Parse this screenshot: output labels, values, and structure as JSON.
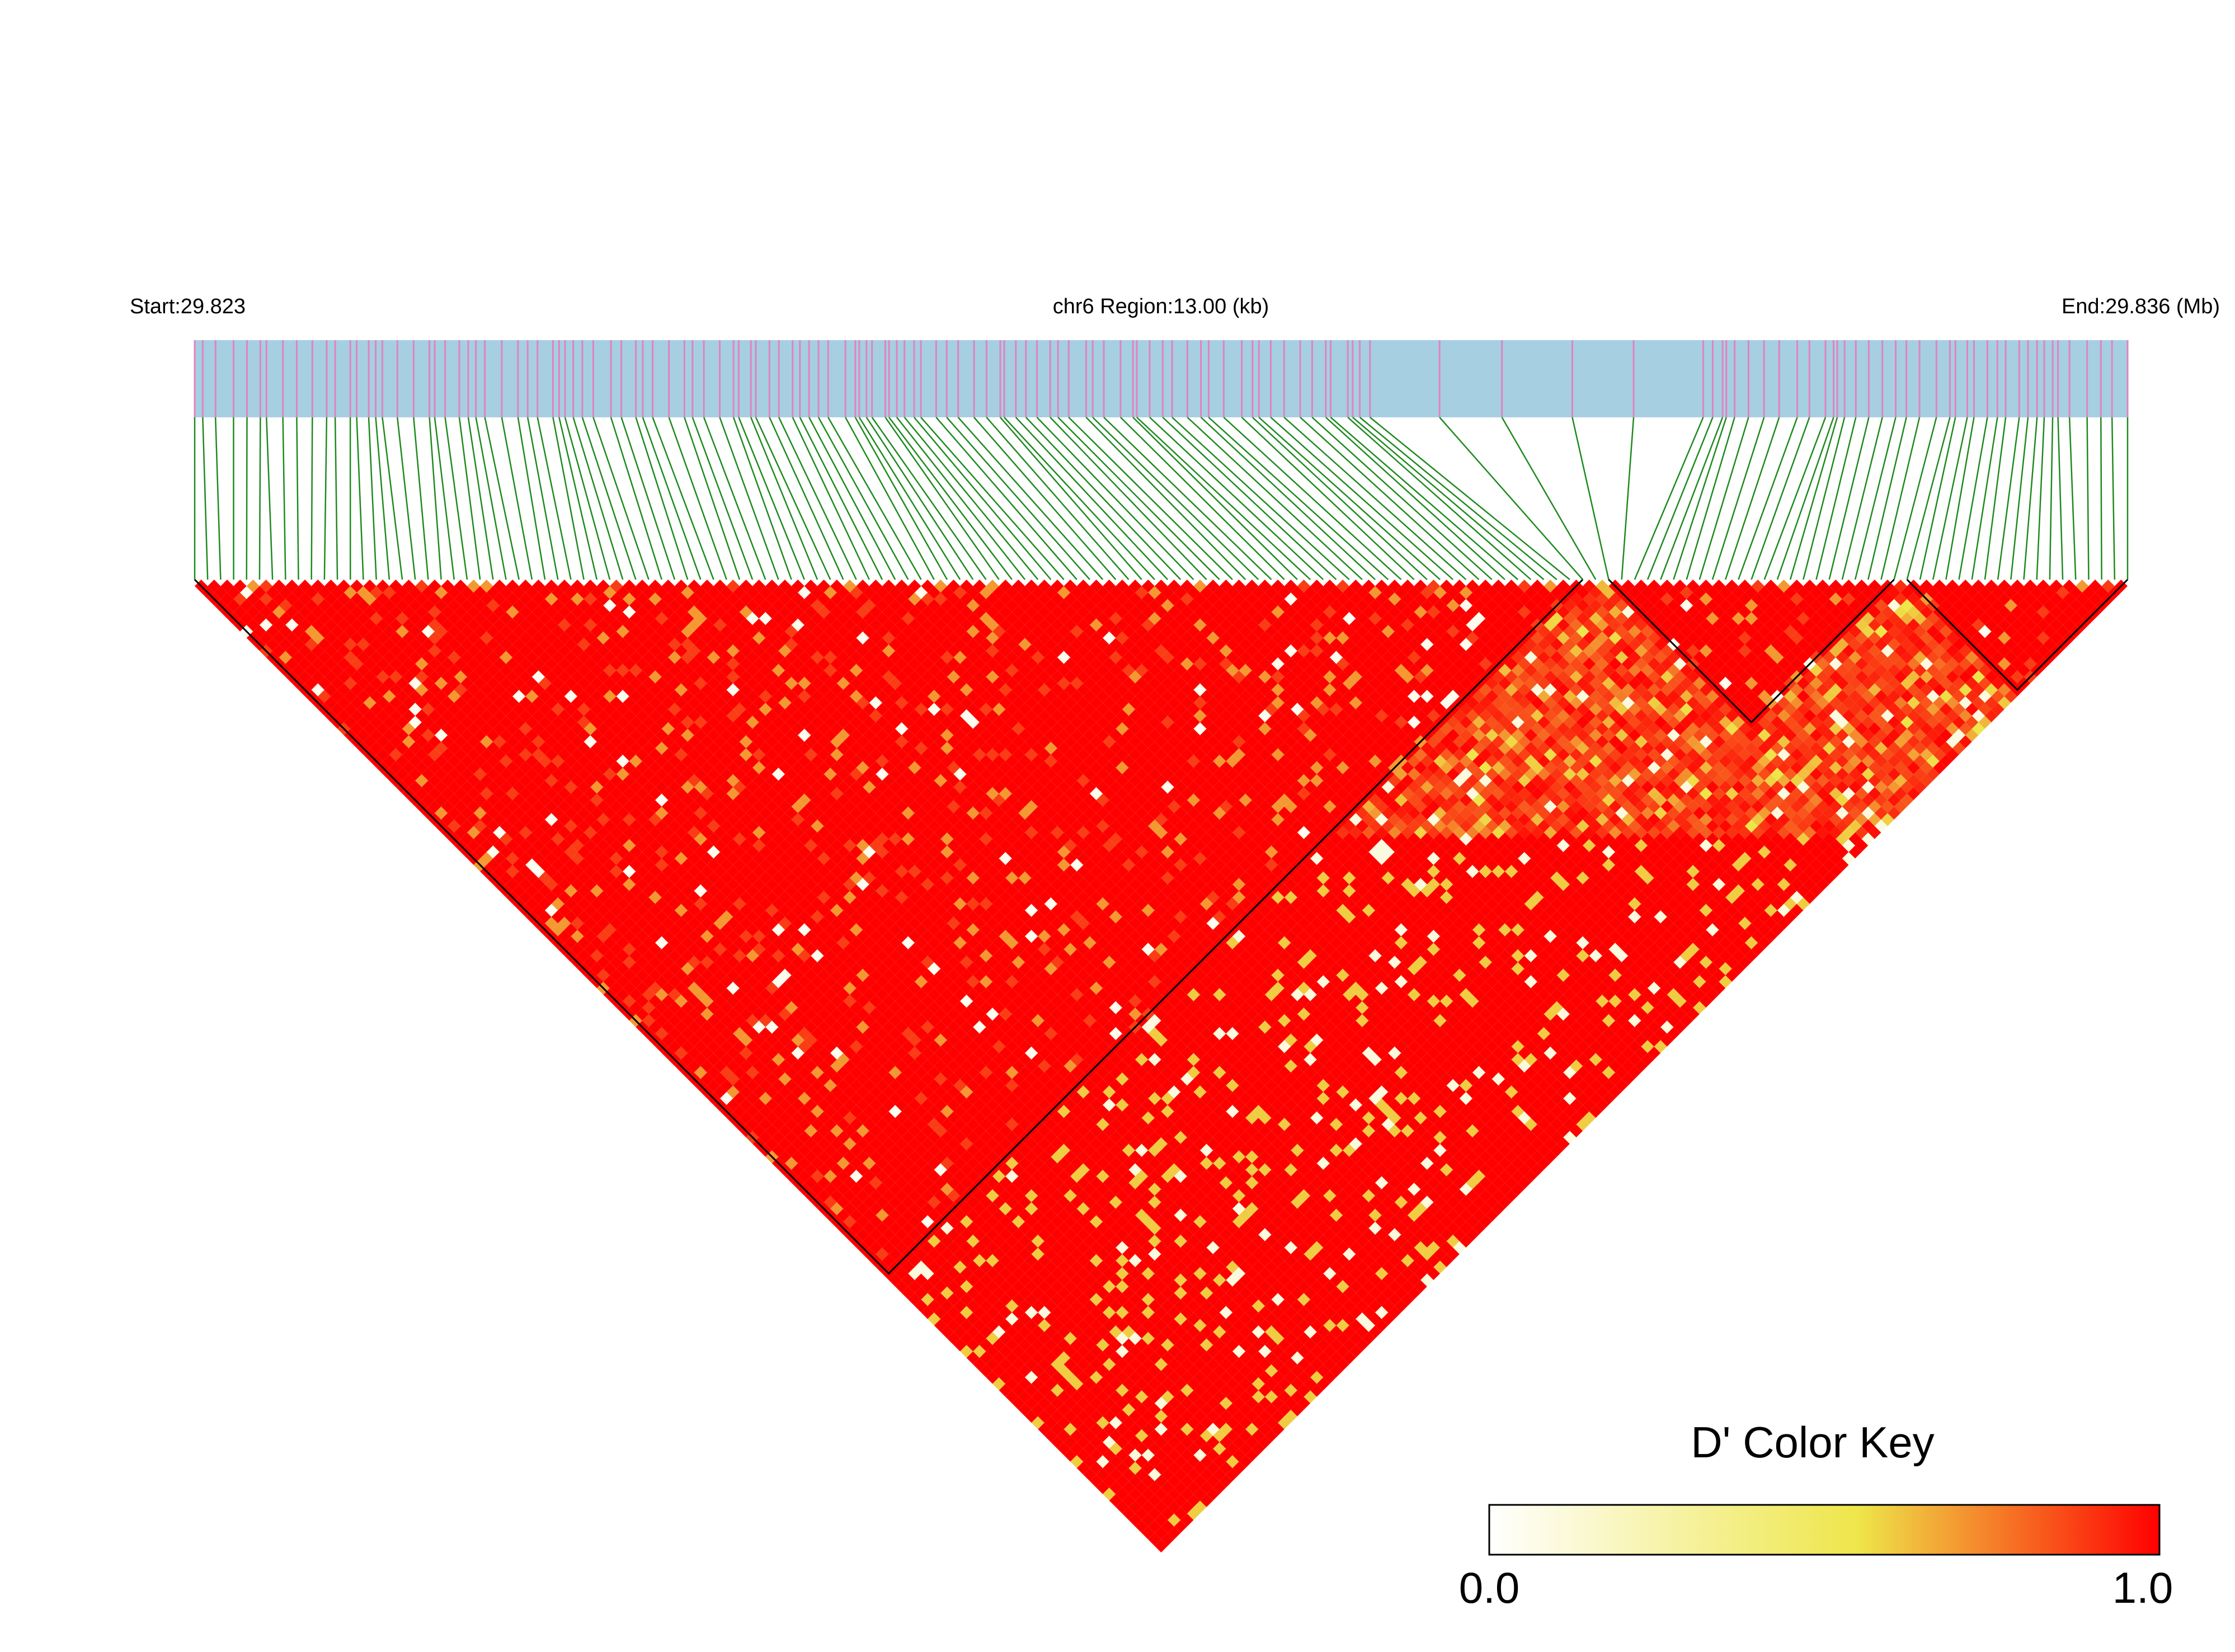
{
  "chart_data": {
    "type": "heatmap",
    "subtype": "LD triangle (pairwise D')",
    "header": {
      "start_label": "Start:29.823",
      "region_label": "chr6 Region:13.00 (kb)",
      "end_label": "End:29.836 (Mb)"
    },
    "chromosome": "chr6",
    "region_start_mb": 29.823,
    "region_end_mb": 29.836,
    "region_size_kb": 13.0,
    "snp_count": 150,
    "haplotype_blocks": [
      {
        "first_snp": 1,
        "last_snp": 108
      },
      {
        "first_snp": 110,
        "last_snp": 132
      },
      {
        "first_snp": 133,
        "last_snp": 150
      }
    ],
    "color_key": {
      "title": "D' Color Key",
      "min_label": "0.0",
      "max_label": "1.0",
      "min": 0.0,
      "max": 1.0,
      "colors": [
        "#ffffff",
        "#eee64a",
        "#ff0000"
      ]
    },
    "colors": {
      "gene_track": "#a6cfe2",
      "snp_tick": "#e183c0",
      "connector": "#1e8a1e",
      "high_ld": "#ff0000",
      "mid_ld": "#f5c23a"
    }
  }
}
